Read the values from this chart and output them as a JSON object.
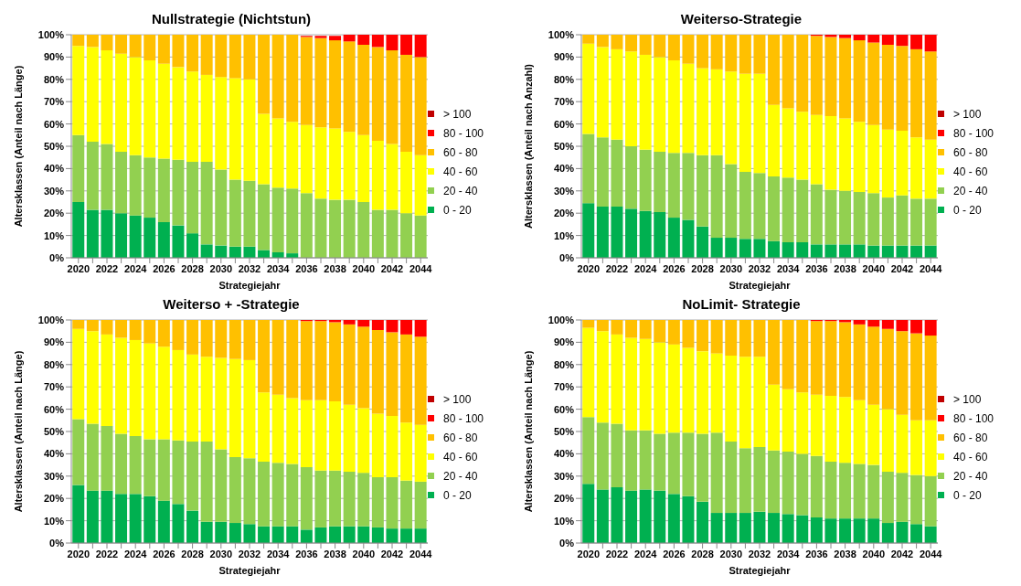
{
  "chart_data": [
    {
      "type": "bar",
      "title": "Nullstrategie (Nichtstun)",
      "xlabel": "Strategiejahr",
      "ylabel": "Altersklassen (Anteil nach Länge)",
      "stacked": true,
      "legend": "right",
      "grid": "y",
      "categories": [
        "2020",
        null,
        "2022",
        null,
        "2024",
        null,
        "2026",
        null,
        "2028",
        null,
        "2030",
        null,
        "2032",
        null,
        "2034",
        null,
        "2036",
        null,
        "2038",
        null,
        "2040",
        null,
        "2042",
        null,
        "2044"
      ],
      "ylim": [
        0,
        100
      ],
      "yticks": [
        {
          "value": 0,
          "label": "0%"
        },
        {
          "value": 10,
          "label": "10%"
        },
        {
          "value": 20,
          "label": "20%"
        },
        {
          "value": 30,
          "label": "30%"
        },
        {
          "value": 40,
          "label": "40%"
        },
        {
          "value": 50,
          "label": "50%"
        },
        {
          "value": 60,
          "label": "60%"
        },
        {
          "value": 70,
          "label": "70%"
        },
        {
          "value": 80,
          "label": "80%"
        },
        {
          "value": 90,
          "label": "90%"
        },
        {
          "value": 100,
          "label": "100%"
        }
      ],
      "series": [
        {
          "name": "0 - 20",
          "color": "#00b050",
          "values": [
            25,
            21.5,
            21.5,
            20,
            19,
            18,
            16,
            14.5,
            11,
            6,
            5.5,
            5,
            5,
            3.5,
            2.5,
            2,
            null,
            null,
            null,
            0,
            0,
            0,
            0,
            0,
            0
          ]
        },
        {
          "name": "20 - 40",
          "color": "#92d050",
          "values": [
            30,
            30.5,
            29.5,
            27.5,
            27,
            27,
            28.5,
            29.5,
            32,
            37,
            34,
            30,
            29.5,
            29.5,
            29,
            29,
            29,
            26.5,
            26,
            26,
            25,
            21.5,
            21.5,
            20,
            19
          ]
        },
        {
          "name": "40 - 60",
          "color": "#ffff00",
          "values": [
            40,
            42.5,
            42,
            44,
            44,
            43.5,
            42.5,
            41.5,
            40.5,
            39,
            41.5,
            45.5,
            45.5,
            31.5,
            31,
            30,
            30.5,
            32,
            32,
            30.5,
            30,
            31,
            29.5,
            27.5,
            27
          ]
        },
        {
          "name": "60 - 80",
          "color": "#ffc000",
          "values": [
            5,
            5.5,
            7,
            8.5,
            10,
            11.5,
            13,
            14.5,
            16.5,
            18,
            19,
            19.5,
            20,
            35.5,
            37.5,
            39,
            39.5,
            40,
            39.5,
            40.5,
            40.5,
            42,
            42,
            43.5,
            44
          ]
        },
        {
          "name": "80 - 100",
          "color": "#ff0000",
          "values": [
            0,
            0,
            0,
            0,
            0,
            0,
            0,
            0,
            0,
            0,
            0,
            0,
            0,
            0,
            0,
            0,
            0.5,
            1,
            2,
            3,
            4.5,
            5.5,
            7,
            9,
            10
          ]
        },
        {
          "name": "> 100",
          "color": "#c00000",
          "values": [
            0,
            0,
            0,
            0,
            0,
            0,
            0,
            0,
            0,
            0,
            0,
            0,
            0,
            0,
            0,
            0,
            0,
            0,
            0,
            0,
            0,
            0,
            0,
            0,
            0
          ]
        }
      ]
    },
    {
      "type": "bar",
      "title": "Weiterso-Strategie",
      "xlabel": "Strategiejahr",
      "ylabel": "Altersklassen (Anteil nach Anzahl)",
      "stacked": true,
      "legend": "right",
      "grid": "y",
      "categories": [
        "2020",
        null,
        "2022",
        null,
        "2024",
        null,
        "2026",
        null,
        "2028",
        null,
        "2030",
        null,
        "2032",
        null,
        "2034",
        null,
        "2036",
        null,
        "2038",
        null,
        "2040",
        null,
        "2042",
        null,
        "2044"
      ],
      "ylim": [
        0,
        100
      ],
      "yticks": [
        {
          "value": 0,
          "label": "0%"
        },
        {
          "value": 10,
          "label": "10%"
        },
        {
          "value": 20,
          "label": "20%"
        },
        {
          "value": 30,
          "label": "30%"
        },
        {
          "value": 40,
          "label": "40%"
        },
        {
          "value": 50,
          "label": "50%"
        },
        {
          "value": 60,
          "label": "60%"
        },
        {
          "value": 70,
          "label": "70%"
        },
        {
          "value": 80,
          "label": "80%"
        },
        {
          "value": 90,
          "label": "90%"
        },
        {
          "value": 100,
          "label": "100%"
        }
      ],
      "series": [
        {
          "name": "0 - 20",
          "color": "#00b050",
          "values": [
            24.5,
            23,
            23,
            22,
            21,
            20.5,
            18,
            17,
            14,
            9,
            9,
            8.5,
            8.5,
            7.5,
            7,
            7,
            6,
            6,
            6,
            6,
            5.5,
            5.5,
            5.5,
            5.5,
            5.5
          ]
        },
        {
          "name": "20 - 40",
          "color": "#92d050",
          "values": [
            31,
            31,
            30,
            28,
            27.5,
            27,
            29,
            30,
            32,
            37,
            33,
            30,
            29.5,
            29,
            29,
            28,
            27,
            24.5,
            24,
            23.5,
            23.5,
            21.5,
            22.5,
            21,
            21
          ]
        },
        {
          "name": "40 - 60",
          "color": "#ffff00",
          "values": [
            40.5,
            40.5,
            40.5,
            42.5,
            42.5,
            42.5,
            41.5,
            40,
            39,
            38.5,
            41.5,
            44,
            44.5,
            32,
            31,
            30.5,
            31,
            33,
            32.5,
            31.5,
            30.5,
            30.5,
            29,
            27.5,
            26.5
          ]
        },
        {
          "name": "60 - 80",
          "color": "#ffc000",
          "values": [
            4,
            5.5,
            6.5,
            7.5,
            9,
            10,
            11.5,
            13,
            15,
            15.5,
            16.5,
            17.5,
            17.5,
            31.5,
            33,
            34.5,
            35.5,
            35.5,
            36,
            36.5,
            37,
            38,
            38,
            39.5,
            39.5
          ]
        },
        {
          "name": "80 - 100",
          "color": "#ff0000",
          "values": [
            0,
            0,
            0,
            0,
            0,
            0,
            0,
            0,
            0,
            0,
            0,
            0,
            0,
            0,
            0,
            0,
            0.5,
            1,
            1.5,
            2.5,
            3.5,
            4.5,
            5,
            6.5,
            7.5
          ]
        },
        {
          "name": "> 100",
          "color": "#c00000",
          "values": [
            0,
            0,
            0,
            0,
            0,
            0,
            0,
            0,
            0,
            0,
            0,
            0,
            0,
            0,
            0,
            0,
            0,
            0,
            0,
            0,
            0,
            0,
            0,
            0,
            0
          ]
        }
      ]
    },
    {
      "type": "bar",
      "title": "Weiterso + -Strategie",
      "xlabel": "Strategiejahr",
      "ylabel": "Altersklassen (Anteil nach Länge)",
      "stacked": true,
      "legend": "right",
      "grid": "y",
      "categories": [
        "2020",
        null,
        "2022",
        null,
        "2024",
        null,
        "2026",
        null,
        "2028",
        null,
        "2030",
        null,
        "2032",
        null,
        "2034",
        null,
        "2036",
        null,
        "2038",
        null,
        "2040",
        null,
        "2042",
        null,
        "2044"
      ],
      "ylim": [
        0,
        100
      ],
      "yticks": [
        {
          "value": 0,
          "label": "0%"
        },
        {
          "value": 10,
          "label": "10%"
        },
        {
          "value": 20,
          "label": "20%"
        },
        {
          "value": 30,
          "label": "30%"
        },
        {
          "value": 40,
          "label": "40%"
        },
        {
          "value": 50,
          "label": "50%"
        },
        {
          "value": 60,
          "label": "60%"
        },
        {
          "value": 70,
          "label": "70%"
        },
        {
          "value": 80,
          "label": "80%"
        },
        {
          "value": 90,
          "label": "90%"
        },
        {
          "value": 100,
          "label": "100%"
        }
      ],
      "series": [
        {
          "name": "0 - 20",
          "color": "#00b050",
          "values": [
            26,
            23.5,
            23.5,
            22,
            22,
            21,
            19,
            17.5,
            14.5,
            9.5,
            9.5,
            9,
            8.5,
            7.5,
            7.5,
            7.5,
            6,
            7,
            7.5,
            7.5,
            7.5,
            7,
            6.5,
            6.5,
            6.5
          ]
        },
        {
          "name": "20 - 40",
          "color": "#92d050",
          "values": [
            29.5,
            30,
            29,
            27,
            26,
            25.5,
            27.5,
            28.5,
            31,
            36,
            32.5,
            29.5,
            29.5,
            29,
            28.5,
            28,
            28,
            25.5,
            25,
            24.5,
            24,
            22.5,
            23,
            21.5,
            21
          ]
        },
        {
          "name": "40 - 60",
          "color": "#ffff00",
          "values": [
            40.5,
            41.5,
            41,
            43,
            43,
            43,
            41.5,
            40.5,
            39,
            38,
            41,
            44,
            44,
            31,
            30.5,
            29.5,
            30,
            31.5,
            31,
            30,
            29,
            28.5,
            27.5,
            26,
            25.5
          ]
        },
        {
          "name": "60 - 80",
          "color": "#ffc000",
          "values": [
            4,
            5,
            6.5,
            8,
            9,
            10.5,
            12,
            13.5,
            15.5,
            16.5,
            17,
            17.5,
            18,
            32.5,
            33.5,
            35,
            35.5,
            35.5,
            35.5,
            36,
            36.5,
            37.5,
            37.5,
            39.5,
            39.5
          ]
        },
        {
          "name": "80 - 100",
          "color": "#ff0000",
          "values": [
            0,
            0,
            0,
            0,
            0,
            0,
            0,
            0,
            0,
            0,
            0,
            0,
            0,
            0,
            0,
            0,
            0.5,
            0.5,
            1,
            2,
            3,
            4.5,
            5.5,
            6.5,
            7.5
          ]
        },
        {
          "name": "> 100",
          "color": "#c00000",
          "values": [
            0,
            0,
            0,
            0,
            0,
            0,
            0,
            0,
            0,
            0,
            0,
            0,
            0,
            0,
            0,
            0,
            0,
            0,
            0,
            0,
            0,
            0,
            0,
            0,
            0
          ]
        }
      ]
    },
    {
      "type": "bar",
      "title": "NoLimit- Strategie",
      "xlabel": "Strategiejahr",
      "ylabel": "Altersklassen (Anteil nach Länge)",
      "stacked": true,
      "legend": "right",
      "grid": "y",
      "categories": [
        "2020",
        null,
        "2022",
        null,
        "2024",
        null,
        "2026",
        null,
        "2028",
        null,
        "2030",
        null,
        "2032",
        null,
        "2034",
        null,
        "2036",
        null,
        "2038",
        null,
        "2040",
        null,
        "2042",
        null,
        "2044"
      ],
      "ylim": [
        0,
        100
      ],
      "yticks": [
        {
          "value": 0,
          "label": "0%"
        },
        {
          "value": 10,
          "label": "10%"
        },
        {
          "value": 20,
          "label": "20%"
        },
        {
          "value": 30,
          "label": "30%"
        },
        {
          "value": 40,
          "label": "40%"
        },
        {
          "value": 50,
          "label": "50%"
        },
        {
          "value": 60,
          "label": "60%"
        },
        {
          "value": 70,
          "label": "70%"
        },
        {
          "value": 80,
          "label": "80%"
        },
        {
          "value": 90,
          "label": "90%"
        },
        {
          "value": 100,
          "label": "100%"
        }
      ],
      "series": [
        {
          "name": "0 - 20",
          "color": "#00b050",
          "values": [
            26.5,
            24,
            25,
            23.5,
            24,
            23.5,
            22,
            21,
            18.5,
            13.5,
            13.5,
            13.5,
            14,
            13.5,
            13,
            12.5,
            11.5,
            11,
            11,
            11,
            11,
            9,
            9.5,
            8.5,
            7.5
          ]
        },
        {
          "name": "20 - 40",
          "color": "#92d050",
          "values": [
            30,
            30,
            28.5,
            27,
            26.5,
            25.5,
            27.5,
            28.5,
            30.5,
            36,
            32,
            29,
            29,
            28,
            28,
            27.5,
            27.5,
            25.5,
            25,
            24.5,
            24,
            23,
            22,
            22,
            22.5
          ]
        },
        {
          "name": "40 - 60",
          "color": "#ffff00",
          "values": [
            40,
            41,
            40,
            41.5,
            41,
            41,
            39.5,
            38,
            37,
            35.5,
            38.5,
            41,
            40.5,
            29.5,
            28,
            27.5,
            27.5,
            29.5,
            29.5,
            28.5,
            27,
            28,
            26,
            24.5,
            25
          ]
        },
        {
          "name": "60 - 80",
          "color": "#ffc000",
          "values": [
            3.5,
            5,
            6.5,
            8,
            8.5,
            10,
            11,
            12.5,
            14,
            15,
            16,
            16.5,
            16.5,
            29,
            31,
            32.5,
            33,
            33.5,
            33.5,
            34,
            35,
            36,
            37.5,
            39,
            38
          ]
        },
        {
          "name": "80 - 100",
          "color": "#ff0000",
          "values": [
            0,
            0,
            0,
            0,
            0,
            0,
            0,
            0,
            0,
            0,
            0,
            0,
            0,
            0,
            0,
            0,
            0.5,
            0.5,
            1,
            2,
            3,
            4,
            5,
            6,
            7
          ]
        },
        {
          "name": "> 100",
          "color": "#c00000",
          "values": [
            0,
            0,
            0,
            0,
            0,
            0,
            0,
            0,
            0,
            0,
            0,
            0,
            0,
            0,
            0,
            0,
            0,
            0,
            0,
            0,
            0,
            0,
            0,
            0,
            0
          ]
        }
      ]
    }
  ]
}
